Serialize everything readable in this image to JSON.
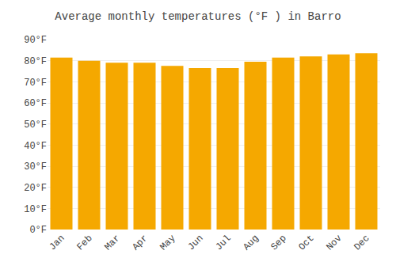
{
  "chart_data": {
    "type": "bar",
    "title": "Average monthly temperatures (°F ) in Barro",
    "categories": [
      "Jan",
      "Feb",
      "Mar",
      "Apr",
      "May",
      "Jun",
      "Jul",
      "Aug",
      "Sep",
      "Oct",
      "Nov",
      "Dec"
    ],
    "values": [
      81.5,
      80.0,
      79.0,
      79.0,
      77.5,
      76.5,
      76.5,
      79.5,
      81.5,
      82.0,
      83.0,
      83.5
    ],
    "color": "#F5A800",
    "ylim": [
      0,
      90
    ],
    "yticks": [
      {
        "value": 0,
        "label": "0°F"
      },
      {
        "value": 10,
        "label": "10°F"
      },
      {
        "value": 20,
        "label": "20°F"
      },
      {
        "value": 30,
        "label": "30°F"
      },
      {
        "value": 40,
        "label": "40°F"
      },
      {
        "value": 50,
        "label": "50°F"
      },
      {
        "value": 60,
        "label": "60°F"
      },
      {
        "value": 70,
        "label": "70°F"
      },
      {
        "value": 80,
        "label": "80°F"
      },
      {
        "value": 90,
        "label": "90°F"
      }
    ],
    "grid": true
  }
}
